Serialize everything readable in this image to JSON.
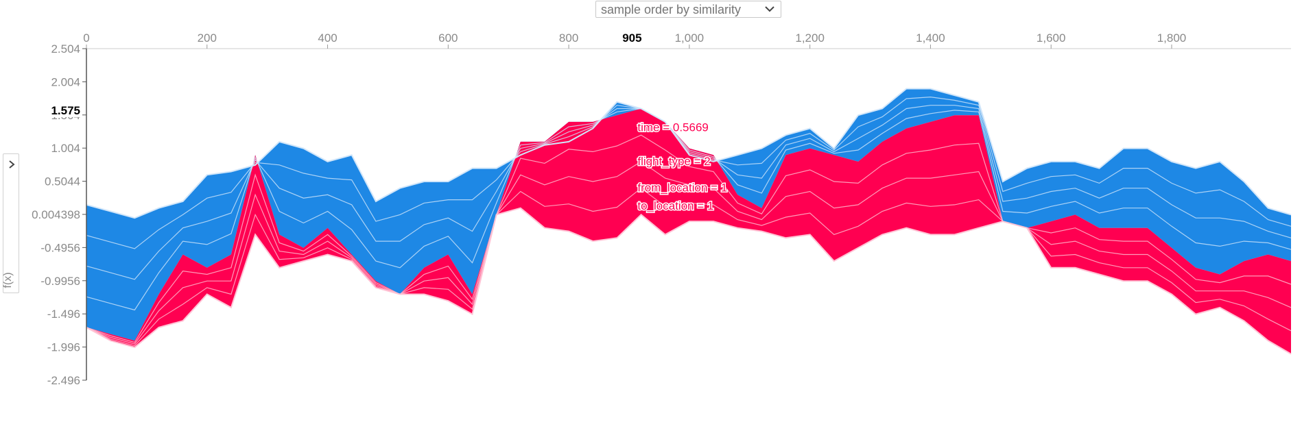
{
  "controls": {
    "order_select_label": "sample order by similarity",
    "y_toggle": "f(x)"
  },
  "colors": {
    "positive": "#ff0051",
    "negative": "#1e88e5",
    "positive_line": "#ffc3d5",
    "negative_line": "#d1e6fa"
  },
  "chart_data": {
    "type": "area",
    "title": "",
    "xlabel": "",
    "ylabel": "f(x)",
    "xlim": [
      0,
      1998
    ],
    "ylim": [
      -2.496,
      2.504
    ],
    "x_ticks": [
      {
        "value": 0,
        "label": "0"
      },
      {
        "value": 200,
        "label": "200"
      },
      {
        "value": 400,
        "label": "400"
      },
      {
        "value": 600,
        "label": "600"
      },
      {
        "value": 800,
        "label": "800"
      },
      {
        "value": 1000,
        "label": "1,000"
      },
      {
        "value": 1200,
        "label": "1,200"
      },
      {
        "value": 1400,
        "label": "1,400"
      },
      {
        "value": 1600,
        "label": "1,600"
      },
      {
        "value": 1800,
        "label": "1,800"
      }
    ],
    "y_ticks": [
      {
        "value": 2.504,
        "label": "2.504"
      },
      {
        "value": 2.004,
        "label": "2.004"
      },
      {
        "value": 1.504,
        "label": "1.504"
      },
      {
        "value": 1.004,
        "label": "1.004"
      },
      {
        "value": 0.5044,
        "label": "0.5044"
      },
      {
        "value": 0.004398,
        "label": "0.004398"
      },
      {
        "value": -0.4956,
        "label": "-0.4956"
      },
      {
        "value": -0.9956,
        "label": "-0.9956"
      },
      {
        "value": -1.496,
        "label": "-1.496"
      },
      {
        "value": -1.996,
        "label": "-1.996"
      },
      {
        "value": -2.496,
        "label": "-2.496"
      }
    ],
    "hover": {
      "x": 905,
      "x_label": "905",
      "y": 1.575,
      "y_label": "1.575"
    },
    "feature_labels": [
      {
        "text": "time = 0.5669",
        "y": 1.32
      },
      {
        "text": "flight_type = 2",
        "y": 0.81
      },
      {
        "text": "from_location = 1",
        "y": 0.41
      },
      {
        "text": "to_location = 1",
        "y": 0.14
      }
    ],
    "x": [
      0,
      40,
      80,
      120,
      160,
      200,
      240,
      280,
      320,
      360,
      400,
      440,
      480,
      520,
      560,
      600,
      640,
      680,
      720,
      760,
      800,
      840,
      880,
      920,
      960,
      1000,
      1040,
      1080,
      1120,
      1160,
      1200,
      1240,
      1280,
      1320,
      1360,
      1400,
      1440,
      1480,
      1520,
      1560,
      1600,
      1640,
      1680,
      1720,
      1760,
      1800,
      1840,
      1880,
      1920,
      1960,
      1998
    ],
    "upper": [
      0.15,
      0.05,
      -0.05,
      0.1,
      0.2,
      0.6,
      0.65,
      0.75,
      1.1,
      1.0,
      0.8,
      0.9,
      0.2,
      0.4,
      0.5,
      0.5,
      0.7,
      0.7,
      0.9,
      1.05,
      1.1,
      1.3,
      1.7,
      1.6,
      1.4,
      0.9,
      0.8,
      0.9,
      1.0,
      1.2,
      1.3,
      1.0,
      1.5,
      1.6,
      1.9,
      1.9,
      1.8,
      1.7,
      0.5,
      0.7,
      0.8,
      0.8,
      0.7,
      1.0,
      1.0,
      0.8,
      0.7,
      0.8,
      0.5,
      0.1,
      0.0
    ],
    "boundary": [
      -1.7,
      -1.8,
      -1.9,
      -1.2,
      -0.6,
      -0.8,
      -0.6,
      0.9,
      -0.3,
      -0.5,
      -0.2,
      -0.6,
      -1.0,
      -1.2,
      -0.8,
      -0.6,
      -1.2,
      0.0,
      1.1,
      1.1,
      1.4,
      1.4,
      1.5,
      1.6,
      1.4,
      1.0,
      0.9,
      0.3,
      0.1,
      0.9,
      1.0,
      0.9,
      0.8,
      1.1,
      1.3,
      1.4,
      1.5,
      1.5,
      -0.1,
      -0.2,
      -0.1,
      0.0,
      -0.2,
      -0.2,
      -0.2,
      -0.5,
      -0.8,
      -0.9,
      -0.7,
      -0.6,
      -0.7
    ],
    "lower": [
      -1.7,
      -1.9,
      -2.0,
      -1.7,
      -1.6,
      -1.2,
      -1.4,
      -0.3,
      -0.8,
      -0.7,
      -0.6,
      -0.7,
      -1.1,
      -1.2,
      -1.2,
      -1.3,
      -1.5,
      0.0,
      0.1,
      -0.2,
      -0.25,
      -0.4,
      -0.35,
      0.0,
      -0.3,
      -0.1,
      -0.1,
      -0.2,
      -0.25,
      -0.35,
      -0.3,
      -0.7,
      -0.5,
      -0.3,
      -0.2,
      -0.3,
      -0.3,
      -0.2,
      -0.1,
      -0.2,
      -0.8,
      -0.8,
      -0.9,
      -1.0,
      -1.0,
      -1.2,
      -1.5,
      -1.4,
      -1.6,
      -1.9,
      -2.1
    ]
  }
}
